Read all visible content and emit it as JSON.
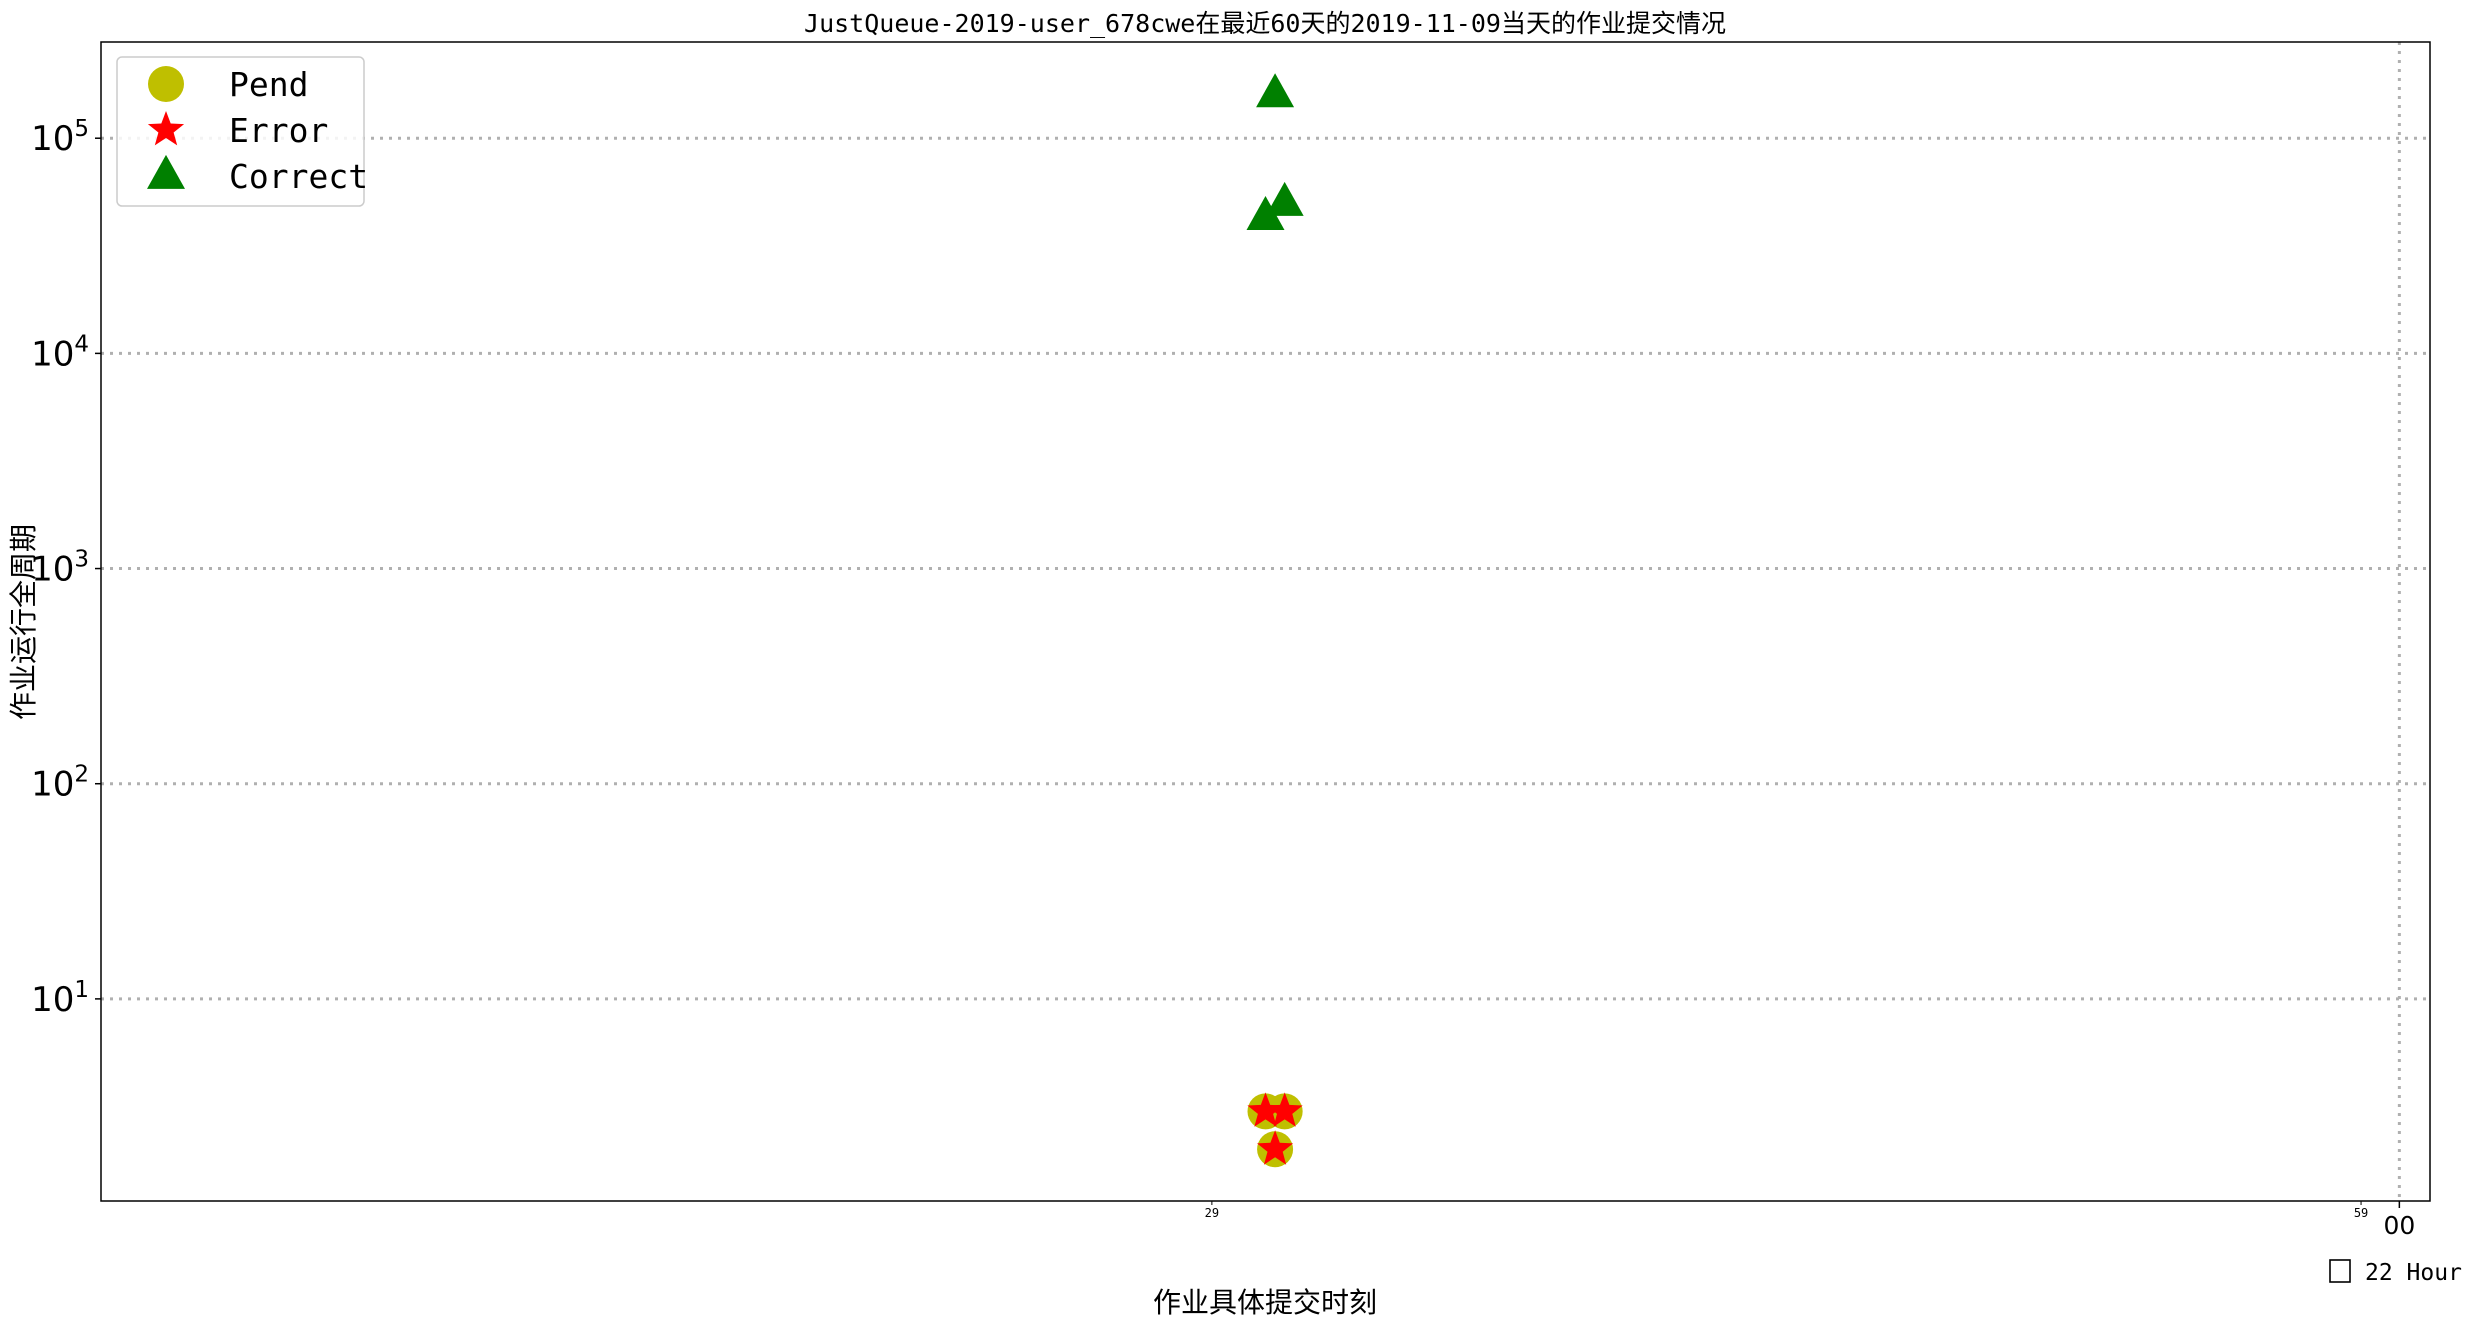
{
  "chart_data": {
    "type": "scatter",
    "title": "JustQueue-2019-user_678cwe在最近60天的2019-11-09当天的作业提交情况",
    "xlabel": "作业具体提交时刻",
    "ylabel": "作业运行全周期",
    "y_scale": "log",
    "ylim": [
      1.15,
      280000
    ],
    "xlim_minutes_in_hour": [
      0,
      60.8
    ],
    "grid": true,
    "legend_position": "upper-left",
    "x_ticks": [
      {
        "minute": 29,
        "label": "29"
      },
      {
        "minute": 59,
        "label": "59"
      },
      {
        "minute": 60,
        "label": "00"
      }
    ],
    "y_ticks": [
      {
        "value": 10,
        "base": "10",
        "exp": "1"
      },
      {
        "value": 100,
        "base": "10",
        "exp": "2"
      },
      {
        "value": 1000,
        "base": "10",
        "exp": "3"
      },
      {
        "value": 10000,
        "base": "10",
        "exp": "4"
      },
      {
        "value": 100000,
        "base": "10",
        "exp": "5"
      }
    ],
    "hour_note": "22 Hour",
    "series": [
      {
        "name": "Pend",
        "marker": "circle",
        "color": "#bfbf00",
        "points": [
          {
            "x": 30.4,
            "y": 3
          },
          {
            "x": 30.9,
            "y": 3
          },
          {
            "x": 30.65,
            "y": 2
          }
        ]
      },
      {
        "name": "Error",
        "marker": "star",
        "color": "#ff0000",
        "points": [
          {
            "x": 30.4,
            "y": 3
          },
          {
            "x": 30.9,
            "y": 3
          },
          {
            "x": 30.65,
            "y": 2
          }
        ]
      },
      {
        "name": "Correct",
        "marker": "triangle",
        "color": "#008000",
        "points": [
          {
            "x": 30.65,
            "y": 160000
          },
          {
            "x": 30.9,
            "y": 50000
          },
          {
            "x": 30.4,
            "y": 43000
          }
        ]
      }
    ]
  }
}
